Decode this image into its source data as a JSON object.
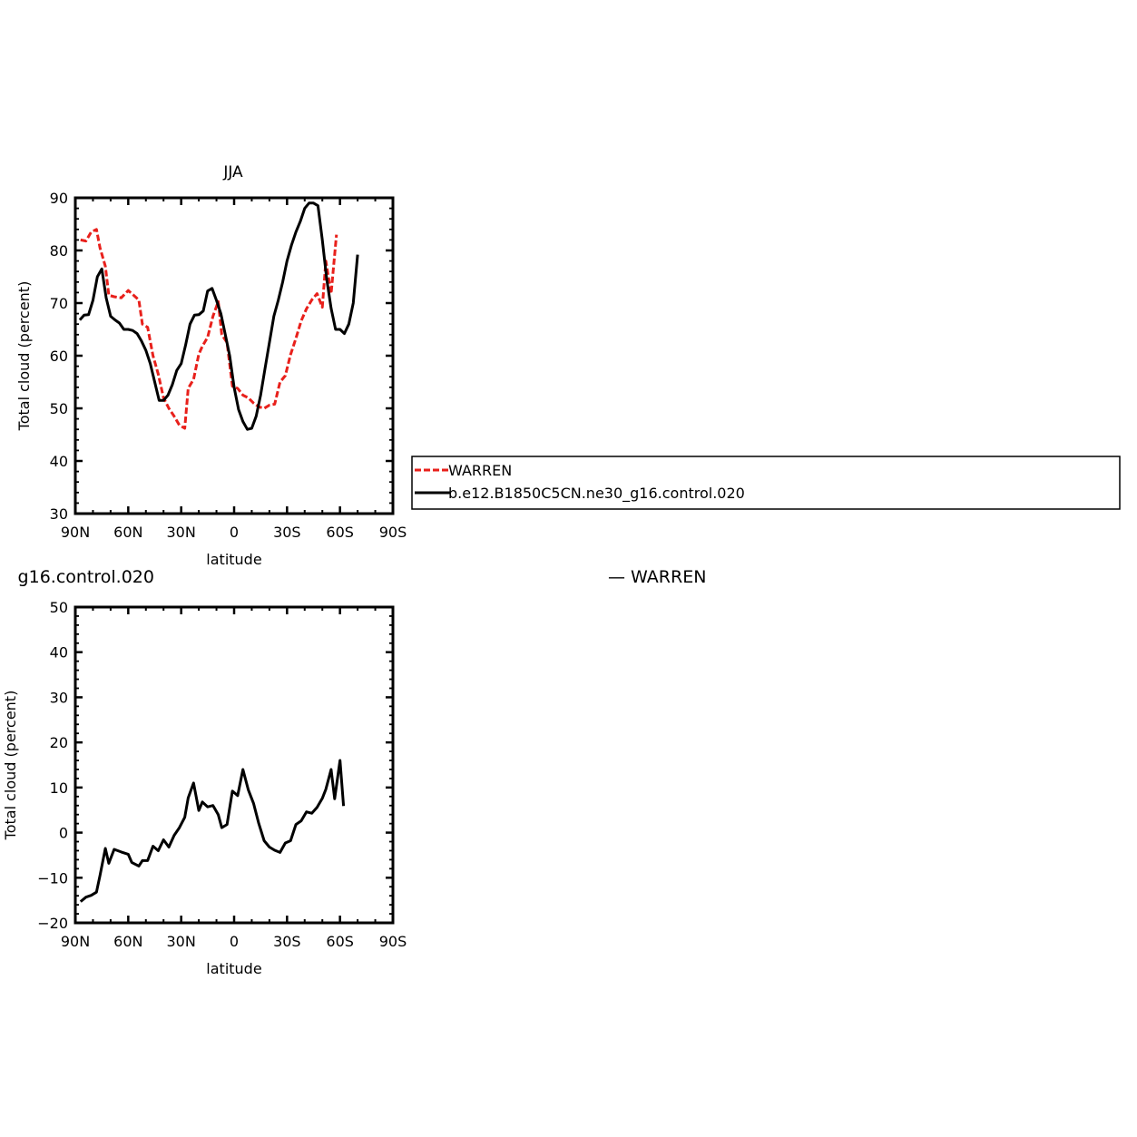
{
  "chart_data": [
    {
      "type": "line",
      "title": "JJA",
      "xlabel": "latitude",
      "ylabel": "Total cloud (percent)",
      "xlim": [
        90,
        -90
      ],
      "ylim": [
        30,
        90
      ],
      "x_ticks": [
        90,
        60,
        30,
        0,
        -30,
        -60,
        -90
      ],
      "x_tick_labels": [
        "90N",
        "60N",
        "30N",
        "0",
        "30S",
        "60S",
        "90S"
      ],
      "y_ticks": [
        30,
        40,
        50,
        60,
        70,
        80,
        90
      ],
      "y_tick_labels": [
        "30",
        "40",
        "50",
        "60",
        "70",
        "80",
        "90"
      ],
      "grid": false,
      "legend": {
        "placement": "right",
        "entries": [
          "WARREN",
          "b.e12.B1850C5CN.ne30_g16.control.020"
        ]
      },
      "series": [
        {
          "name": "WARREN",
          "color": "#e8201b",
          "dash": "dashed",
          "points": [
            [
              87,
              82.0
            ],
            [
              84,
              81.8
            ],
            [
              81,
              83.5
            ],
            [
              78,
              84.0
            ],
            [
              76,
              80.5
            ],
            [
              73,
              77.0
            ],
            [
              71,
              71.5
            ],
            [
              68,
              71.2
            ],
            [
              64,
              71.0
            ],
            [
              60,
              72.4
            ],
            [
              58,
              71.8
            ],
            [
              54,
              70.6
            ],
            [
              52,
              66.0
            ],
            [
              49,
              65.4
            ],
            [
              46,
              60.0
            ],
            [
              43,
              56.5
            ],
            [
              40,
              52.0
            ],
            [
              37,
              50.0
            ],
            [
              34,
              48.5
            ],
            [
              31,
              46.8
            ],
            [
              28,
              46.2
            ],
            [
              26,
              53.8
            ],
            [
              23,
              55.5
            ],
            [
              20,
              60.3
            ],
            [
              18,
              61.8
            ],
            [
              15,
              63.5
            ],
            [
              12,
              67.5
            ],
            [
              9,
              70.3
            ],
            [
              7,
              64.0
            ],
            [
              4,
              62.5
            ],
            [
              1,
              54.2
            ],
            [
              -2,
              53.8
            ],
            [
              -5,
              52.5
            ],
            [
              -8,
              52.0
            ],
            [
              -11,
              51.0
            ],
            [
              -14,
              50.3
            ],
            [
              -17,
              50.0
            ],
            [
              -20,
              50.6
            ],
            [
              -23,
              50.8
            ],
            [
              -26,
              55.0
            ],
            [
              -29,
              56.2
            ],
            [
              -32,
              60.2
            ],
            [
              -35,
              63.3
            ],
            [
              -38,
              66.6
            ],
            [
              -41,
              68.9
            ],
            [
              -44,
              70.6
            ],
            [
              -47,
              71.8
            ],
            [
              -50,
              69.2
            ],
            [
              -52,
              78.0
            ],
            [
              -55,
              71.8
            ],
            [
              -58,
              83.0
            ]
          ]
        },
        {
          "name": "b.e12.B1850C5CN.ne30_g16.control.020",
          "color": "#000000",
          "dash": "solid",
          "points": [
            [
              87.5,
              66.8
            ],
            [
              85,
              67.7
            ],
            [
              82.5,
              67.8
            ],
            [
              80,
              70.5
            ],
            [
              77.5,
              75.0
            ],
            [
              75,
              76.5
            ],
            [
              72.5,
              71.0
            ],
            [
              70,
              67.5
            ],
            [
              67.5,
              66.8
            ],
            [
              65,
              66.2
            ],
            [
              62.5,
              65.0
            ],
            [
              60,
              65.0
            ],
            [
              57.5,
              64.8
            ],
            [
              55,
              64.2
            ],
            [
              52.5,
              62.8
            ],
            [
              50,
              61.0
            ],
            [
              47.5,
              58.5
            ],
            [
              45,
              55.0
            ],
            [
              42.5,
              51.5
            ],
            [
              40,
              51.5
            ],
            [
              37.5,
              52.5
            ],
            [
              35,
              54.5
            ],
            [
              32.5,
              57.2
            ],
            [
              30,
              58.5
            ],
            [
              27.5,
              62.0
            ],
            [
              25,
              66.0
            ],
            [
              22.5,
              67.7
            ],
            [
              20,
              67.8
            ],
            [
              17.5,
              68.5
            ],
            [
              15,
              72.3
            ],
            [
              12.5,
              72.8
            ],
            [
              10,
              70.5
            ],
            [
              7.5,
              68.0
            ],
            [
              5,
              64.0
            ],
            [
              2.5,
              60.0
            ],
            [
              0,
              54.0
            ],
            [
              -2.5,
              49.8
            ],
            [
              -5,
              47.5
            ],
            [
              -7.5,
              46.0
            ],
            [
              -10,
              46.2
            ],
            [
              -12.5,
              48.5
            ],
            [
              -15,
              52.5
            ],
            [
              -17.5,
              57.5
            ],
            [
              -20,
              62.5
            ],
            [
              -22.5,
              67.5
            ],
            [
              -25,
              70.5
            ],
            [
              -27.5,
              74.0
            ],
            [
              -30,
              78.0
            ],
            [
              -32.5,
              81.0
            ],
            [
              -35,
              83.5
            ],
            [
              -37.5,
              85.5
            ],
            [
              -40,
              88.0
            ],
            [
              -42.5,
              89.0
            ],
            [
              -45,
              89.0
            ],
            [
              -47.5,
              88.5
            ],
            [
              -50,
              82.0
            ],
            [
              -52.5,
              74.5
            ],
            [
              -55,
              69.0
            ],
            [
              -57.5,
              65.0
            ],
            [
              -60,
              65.0
            ],
            [
              -62.5,
              64.2
            ],
            [
              -65,
              66.0
            ],
            [
              -67.5,
              70.0
            ],
            [
              -70,
              79.2
            ]
          ]
        }
      ]
    },
    {
      "type": "line",
      "title": "g16.control.020",
      "subtitle": "— WARREN",
      "xlabel": "latitude",
      "ylabel": "Total cloud (percent)",
      "xlim": [
        90,
        -90
      ],
      "ylim": [
        -20,
        50
      ],
      "x_ticks": [
        90,
        60,
        30,
        0,
        -30,
        -60,
        -90
      ],
      "x_tick_labels": [
        "90N",
        "60N",
        "30N",
        "0",
        "30S",
        "60S",
        "90S"
      ],
      "y_ticks": [
        -20,
        -10,
        0,
        10,
        20,
        30,
        40,
        50
      ],
      "y_tick_labels": [
        "−20",
        "−10",
        "0",
        "10",
        "20",
        "30",
        "40",
        "50"
      ],
      "grid": false,
      "series": [
        {
          "color": "#000000",
          "dash": "solid",
          "points": [
            [
              87,
              -15.3
            ],
            [
              84,
              -14.3
            ],
            [
              81,
              -13.9
            ],
            [
              78,
              -13.2
            ],
            [
              76,
              -9.5
            ],
            [
              73,
              -3.5
            ],
            [
              71,
              -6.8
            ],
            [
              68,
              -3.7
            ],
            [
              64,
              -4.3
            ],
            [
              60,
              -4.8
            ],
            [
              58,
              -6.6
            ],
            [
              54,
              -7.4
            ],
            [
              52,
              -6.2
            ],
            [
              49,
              -6.2
            ],
            [
              46,
              -3.0
            ],
            [
              43,
              -4.0
            ],
            [
              40,
              -1.6
            ],
            [
              37,
              -3.2
            ],
            [
              34,
              -0.6
            ],
            [
              31,
              1.1
            ],
            [
              28,
              3.4
            ],
            [
              26,
              7.7
            ],
            [
              23,
              11.0
            ],
            [
              20,
              4.9
            ],
            [
              18,
              6.8
            ],
            [
              15,
              5.7
            ],
            [
              12,
              6.0
            ],
            [
              9,
              4.0
            ],
            [
              7,
              1.1
            ],
            [
              4,
              1.8
            ],
            [
              1,
              9.2
            ],
            [
              -2,
              8.2
            ],
            [
              -5,
              14.0
            ],
            [
              -8,
              9.5
            ],
            [
              -11,
              6.5
            ],
            [
              -14,
              2.0
            ],
            [
              -17,
              -1.8
            ],
            [
              -20,
              -3.2
            ],
            [
              -23,
              -3.9
            ],
            [
              -26,
              -4.4
            ],
            [
              -29,
              -2.3
            ],
            [
              -32,
              -1.8
            ],
            [
              -35,
              1.8
            ],
            [
              -38,
              2.6
            ],
            [
              -41,
              4.6
            ],
            [
              -44,
              4.3
            ],
            [
              -47,
              5.6
            ],
            [
              -50,
              7.6
            ],
            [
              -52,
              9.6
            ],
            [
              -55,
              14.0
            ],
            [
              -57,
              7.5
            ],
            [
              -60,
              16.0
            ],
            [
              -62,
              5.9
            ]
          ]
        }
      ]
    }
  ]
}
